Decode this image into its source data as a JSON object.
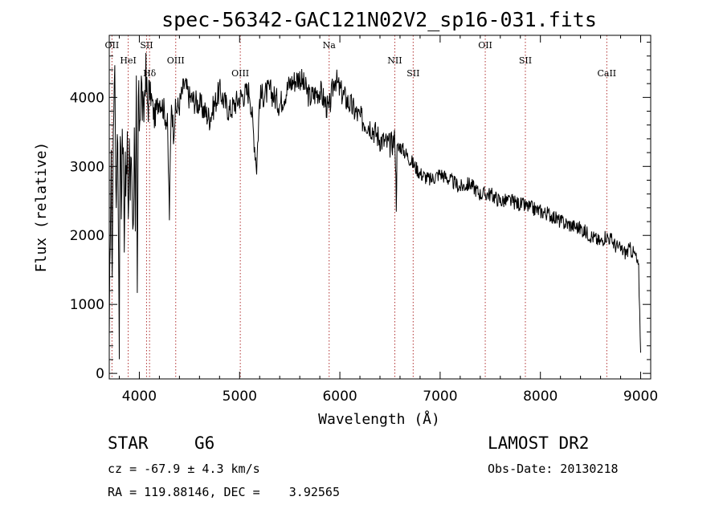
{
  "chart_data": {
    "type": "line",
    "title": "spec-56342-GAC121N02V2_sp16-031.fits",
    "xlabel": "Wavelength (Å)",
    "ylabel": "Flux (relative)",
    "xlim": [
      3700,
      9100
    ],
    "ylim": [
      -80,
      4900
    ],
    "x_ticks": [
      4000,
      5000,
      6000,
      7000,
      8000,
      9000
    ],
    "y_ticks": [
      0,
      1000,
      2000,
      3000,
      4000
    ],
    "grid": false,
    "series": [
      {
        "x": [
          3700,
          3710,
          3720,
          3730,
          3740,
          3750,
          3760,
          3770,
          3780,
          3790,
          3800,
          3810,
          3820,
          3830,
          3840,
          3850,
          3860,
          3870,
          3880,
          3890,
          3900,
          3910,
          3920,
          3930,
          3940,
          3950,
          3960,
          3970,
          3980,
          3990,
          4000,
          4020,
          4040,
          4060,
          4080,
          4100,
          4120,
          4150,
          4200,
          4250,
          4280,
          4300,
          4320,
          4340,
          4360,
          4400,
          4450,
          4500,
          4600,
          4700,
          4800,
          4860,
          4900,
          5000,
          5100,
          5170,
          5200,
          5300,
          5400,
          5500,
          5600,
          5700,
          5800,
          5890,
          5950,
          6000,
          6100,
          6200,
          6300,
          6400,
          6500,
          6550,
          6563,
          6570,
          6600,
          6700,
          6800,
          6900,
          7000,
          7100,
          7200,
          7300,
          7400,
          7500,
          7600,
          7700,
          7800,
          7900,
          8000,
          8100,
          8200,
          8300,
          8400,
          8500,
          8600,
          8650,
          8700,
          8750,
          8800,
          8850,
          8900,
          8950,
          8980,
          9000
        ],
        "values": [
          200,
          2200,
          2900,
          1500,
          3400,
          4500,
          3700,
          2400,
          3800,
          2500,
          600,
          3700,
          2300,
          3500,
          3100,
          2100,
          3300,
          2600,
          3400,
          1900,
          3500,
          2600,
          3200,
          2700,
          2000,
          3800,
          1800,
          4000,
          1000,
          4000,
          3700,
          4200,
          3600,
          4400,
          3900,
          4100,
          4000,
          3700,
          4000,
          3800,
          3600,
          2300,
          4000,
          3500,
          3800,
          3900,
          4200,
          4000,
          3900,
          3700,
          4100,
          3900,
          3800,
          4000,
          4100,
          3000,
          4000,
          4100,
          3900,
          4200,
          4300,
          4000,
          4100,
          3800,
          4300,
          4100,
          3900,
          3700,
          3600,
          3400,
          3300,
          3400,
          2500,
          3200,
          3300,
          3100,
          2900,
          2800,
          2900,
          2800,
          2700,
          2750,
          2600,
          2600,
          2500,
          2500,
          2450,
          2400,
          2350,
          2300,
          2200,
          2150,
          2100,
          2000,
          1900,
          2000,
          1950,
          1850,
          1800,
          1750,
          1800,
          1700,
          1500,
          300
        ]
      }
    ],
    "emission_lines": [
      {
        "label": "OII",
        "wavelength": 3727
      },
      {
        "label": "HeI",
        "wavelength": 3889
      },
      {
        "label": "Hδ",
        "wavelength": 4102
      },
      {
        "label": "SII",
        "wavelength": 4072
      },
      {
        "label": "OIII",
        "wavelength": 4363
      },
      {
        "label": "OIII",
        "wavelength": 5007
      },
      {
        "label": "Na",
        "wavelength": 5893
      },
      {
        "label": "NII",
        "wavelength": 6548
      },
      {
        "label": "SII",
        "wavelength": 6731
      },
      {
        "label": "OII",
        "wavelength": 7450
      },
      {
        "label": "SII",
        "wavelength": 7850
      },
      {
        "label": "CaII",
        "wavelength": 8662
      }
    ]
  },
  "info": {
    "class": "STAR",
    "subclass": "G6",
    "cz": "cz = -67.9 ± 4.3 km/s",
    "coords": "RA = 119.88146, DEC =    3.92565",
    "survey": "LAMOST DR2",
    "obs_date": "Obs-Date: 20130218"
  },
  "colors": {
    "spectrum": "#000000",
    "line_markers": "#b03030",
    "axes": "#000000"
  }
}
